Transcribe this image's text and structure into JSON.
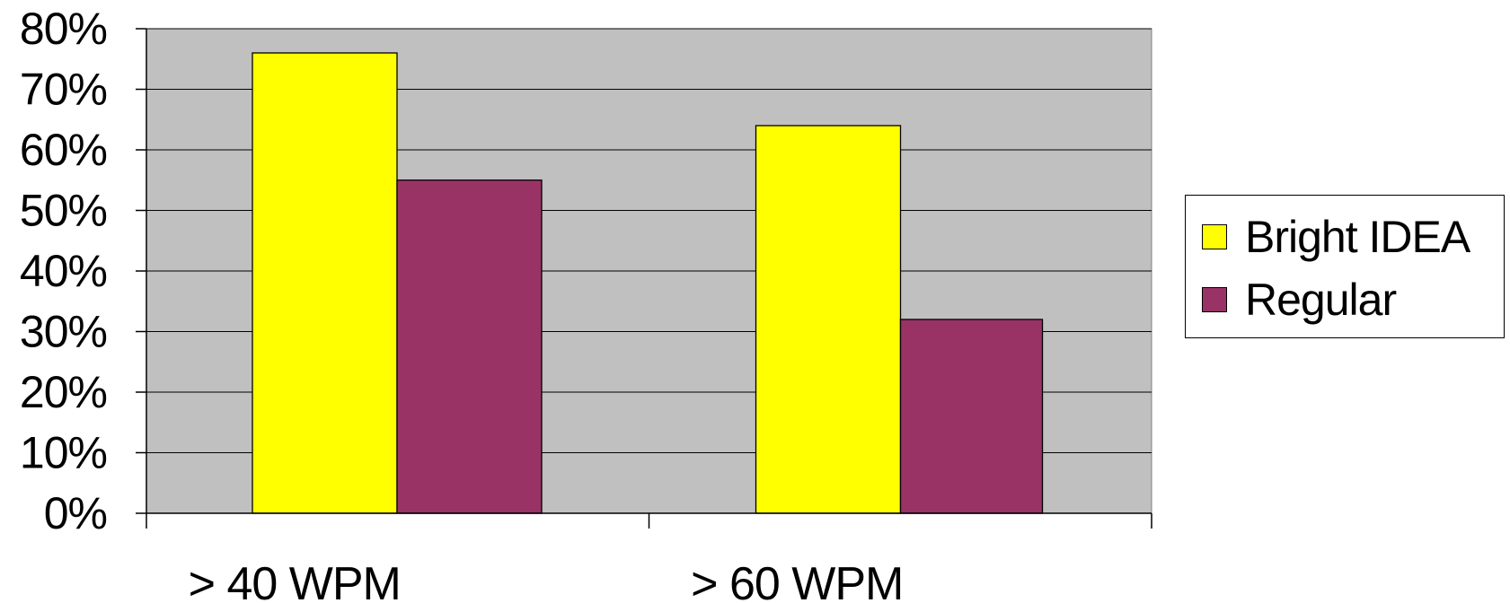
{
  "chart_data": {
    "type": "bar",
    "categories": [
      "> 40 WPM",
      "> 60 WPM"
    ],
    "series": [
      {
        "name": "Bright IDEA",
        "values": [
          76,
          64
        ],
        "color": "#FFFF00"
      },
      {
        "name": "Regular",
        "values": [
          55,
          32
        ],
        "color": "#993366"
      }
    ],
    "yticks": [
      "0%",
      "10%",
      "20%",
      "30%",
      "40%",
      "50%",
      "60%",
      "70%",
      "80%"
    ],
    "ylim": [
      0,
      80
    ],
    "grid": true,
    "legend_position": "right",
    "plot_background": "#C0C0C0"
  }
}
